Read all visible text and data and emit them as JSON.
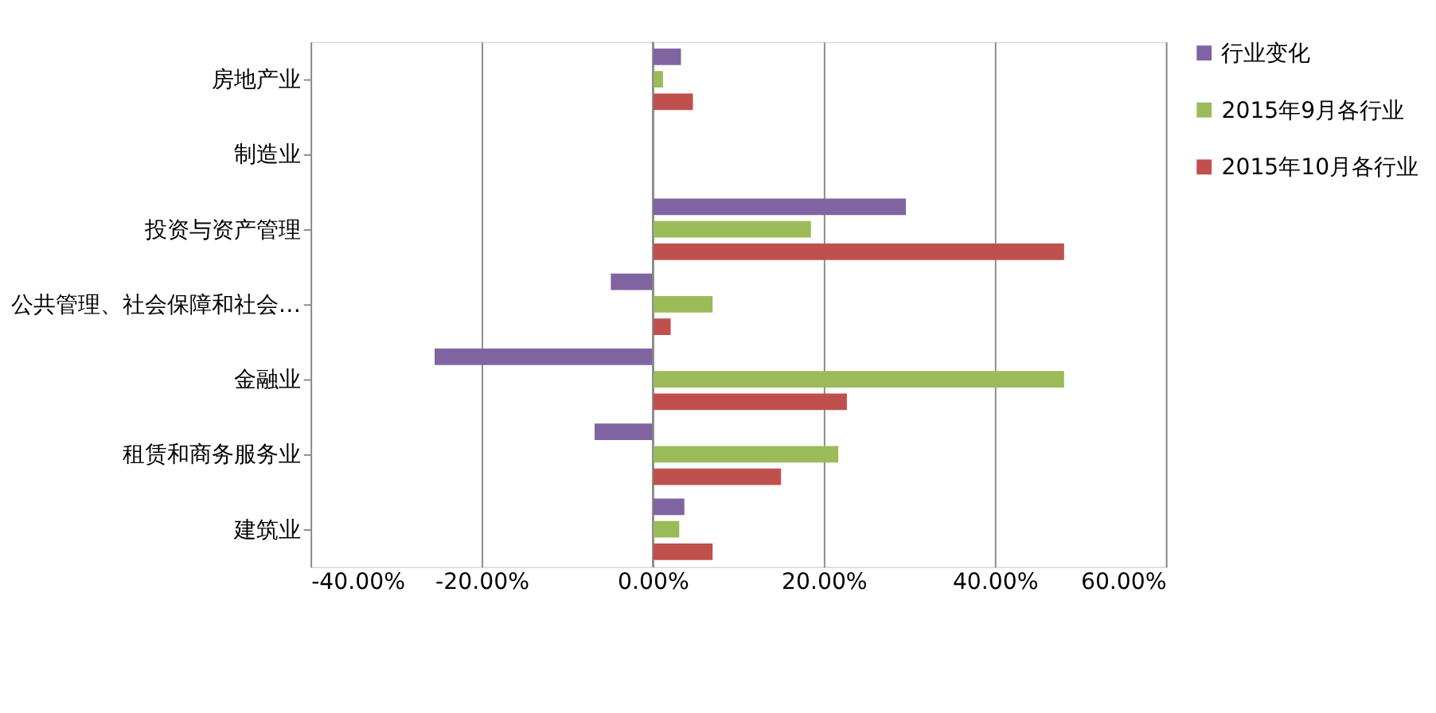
{
  "chart_data": {
    "type": "bar",
    "orientation": "horizontal",
    "categories": [
      "房地产业",
      "制造业",
      "投资与资产管理",
      "公共管理、社会保障和社会…",
      "金融业",
      "租赁和商务服务业",
      "建筑业"
    ],
    "series": [
      {
        "name": "行业变化",
        "color": "#8064a2",
        "values": [
          3.3,
          null,
          29.6,
          -4.9,
          -25.5,
          -6.8,
          3.7
        ]
      },
      {
        "name": "2015年9月各行业",
        "color": "#9bbb59",
        "values": [
          1.2,
          null,
          18.5,
          7.0,
          48.1,
          21.7,
          3.1
        ]
      },
      {
        "name": "2015年10月各行业",
        "color": "#c0504d",
        "values": [
          4.7,
          null,
          48.1,
          2.1,
          22.7,
          15.0,
          7.0
        ]
      }
    ],
    "xlim": [
      -40,
      60
    ],
    "xticks": [
      {
        "value": -40,
        "label": "-40.00%"
      },
      {
        "value": -20,
        "label": "-20.00%"
      },
      {
        "value": 0,
        "label": "0.00%"
      },
      {
        "value": 20,
        "label": "20.00%"
      },
      {
        "value": 40,
        "label": "40.00%"
      },
      {
        "value": 60,
        "label": "60.00%"
      }
    ],
    "grid": "x",
    "legend": "right"
  }
}
